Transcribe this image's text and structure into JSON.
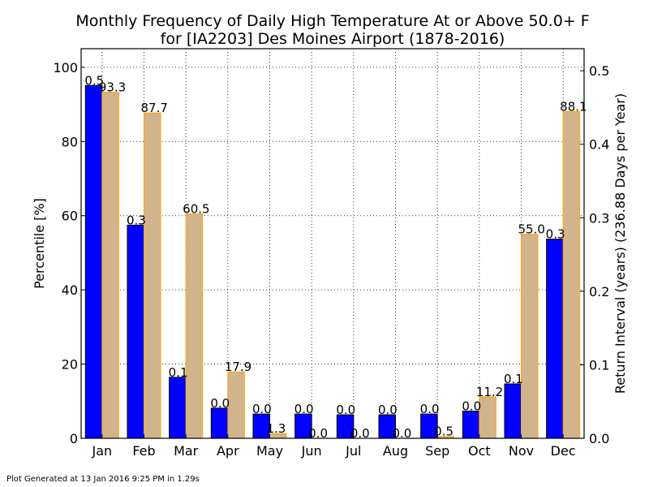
{
  "chart_data": {
    "type": "bar",
    "title": "Monthly Frequency of Daily High Temperature At or Above 50.0+ F",
    "subtitle": "for [IA2203] Des Moines Airport (1878-2016)",
    "categories": [
      "Jan",
      "Feb",
      "Mar",
      "Apr",
      "May",
      "Jun",
      "Jul",
      "Aug",
      "Sep",
      "Oct",
      "Nov",
      "Dec"
    ],
    "ylabel": "Percentile [%]",
    "ylabel_color": "#d2b48c",
    "y2label": "Return Interval (years) (236.88 Days per Year)",
    "y2label_color": "#0000ff",
    "ylim": [
      0,
      105
    ],
    "y2lim": [
      0,
      0.53
    ],
    "yticks": [
      "0",
      "20",
      "40",
      "60",
      "80",
      "100"
    ],
    "y2ticks": [
      "0.0",
      "0.1",
      "0.2",
      "0.3",
      "0.4",
      "0.5"
    ],
    "grid": true,
    "series": [
      {
        "axis": "right",
        "color": "#0000ff",
        "values": [
          0.48,
          0.29,
          0.083,
          0.041,
          0.033,
          0.033,
          0.032,
          0.032,
          0.033,
          0.037,
          0.074,
          0.271
        ],
        "labels": [
          "0.5",
          "0.3",
          "0.1",
          "0.0",
          "0.0",
          "0.0",
          "0.0",
          "0.0",
          "0.0",
          "0.0",
          "0.1",
          "0.3"
        ]
      },
      {
        "axis": "left",
        "color": "#d2b48c",
        "edge_color": "#ffa500",
        "values": [
          93.3,
          87.7,
          60.5,
          17.9,
          1.3,
          0.0,
          0.0,
          0.0,
          0.5,
          11.2,
          55.0,
          88.1
        ],
        "labels": [
          "93.3",
          "87.7",
          "60.5",
          "17.9",
          "1.3",
          "0.0",
          "0.0",
          "0.0",
          "0.5",
          "11.2",
          "55.0",
          "88.1"
        ]
      }
    ]
  },
  "footer": "Plot Generated at 13 Jan 2016 9:25 PM in 1.29s"
}
